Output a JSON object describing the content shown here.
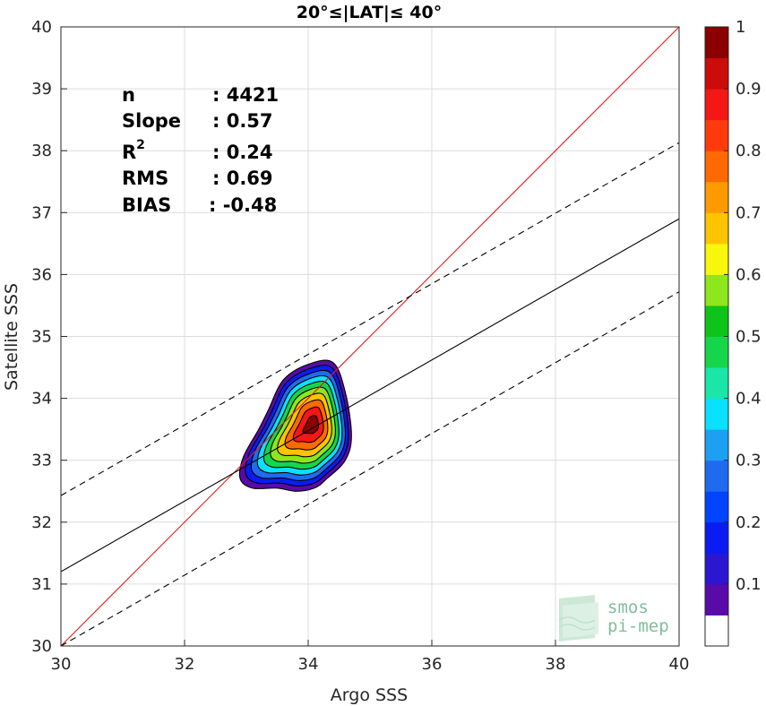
{
  "chart_data": {
    "type": "scatter",
    "title": "20°≤|LAT|≤ 40°",
    "xlabel": "Argo SSS",
    "ylabel": "Satellite SSS",
    "xlim": [
      30,
      40
    ],
    "ylim": [
      30,
      40
    ],
    "xticks": [
      "30",
      "32",
      "34",
      "36",
      "38",
      "40"
    ],
    "yticks": [
      "30",
      "31",
      "32",
      "33",
      "34",
      "35",
      "36",
      "37",
      "38",
      "39",
      "40"
    ],
    "grid": true,
    "stats": [
      {
        "label": "n",
        "value": ": 4421"
      },
      {
        "label": "Slope",
        "value": ": 0.57"
      },
      {
        "label": "R",
        "sup": "2",
        "value": ": 0.24"
      },
      {
        "label": "RMS",
        "value": ": 0.69"
      },
      {
        "label": "BIAS",
        "value": ": -0.48"
      }
    ],
    "lines": [
      {
        "kind": "one-to-one",
        "color": "#e8191b",
        "style": "solid",
        "x": [
          30,
          40
        ],
        "y": [
          30,
          40
        ]
      },
      {
        "kind": "regression",
        "color": "#000000",
        "style": "solid",
        "x": [
          30,
          40
        ],
        "y": [
          31.2,
          36.9
        ]
      },
      {
        "kind": "regression-upper",
        "color": "#000000",
        "style": "dashed",
        "x": [
          30,
          40
        ],
        "y": [
          32.43,
          38.13
        ]
      },
      {
        "kind": "regression-lower",
        "color": "#000000",
        "style": "dashed",
        "x": [
          30,
          40
        ],
        "y": [
          30.0,
          35.72
        ]
      }
    ],
    "density": {
      "center": [
        34.08,
        33.58
      ],
      "peak": 1.0,
      "contour_levels": [
        0.05,
        0.15,
        0.25,
        0.35,
        0.45,
        0.55,
        0.65,
        0.75,
        0.85,
        0.95
      ],
      "outer_contour": [
        [
          33.6,
          34.3
        ],
        [
          34.0,
          34.55
        ],
        [
          34.4,
          34.58
        ],
        [
          34.6,
          34.1
        ],
        [
          34.7,
          33.4
        ],
        [
          34.6,
          33.0
        ],
        [
          34.3,
          32.7
        ],
        [
          34.1,
          32.55
        ],
        [
          33.8,
          32.5
        ],
        [
          33.5,
          32.55
        ],
        [
          33.1,
          32.55
        ],
        [
          32.9,
          32.7
        ],
        [
          32.95,
          33.05
        ],
        [
          33.2,
          33.5
        ],
        [
          33.35,
          33.8
        ]
      ],
      "colormap": [
        "#ffffff",
        "#5a0aa8",
        "#2b17cf",
        "#0a1cf2",
        "#0044ff",
        "#1f6bf0",
        "#1da0f2",
        "#0ae0ff",
        "#1ae6a8",
        "#15d64a",
        "#0ec41a",
        "#8ee61c",
        "#f7f70c",
        "#ffc400",
        "#ff9a00",
        "#ff6a00",
        "#ff3b0e",
        "#f51616",
        "#cc0b0b",
        "#8b0000"
      ]
    },
    "colorbar": {
      "min": 0,
      "max": 1,
      "ticks": [
        "0.1",
        "0.2",
        "0.3",
        "0.4",
        "0.5",
        "0.6",
        "0.7",
        "0.8",
        "0.9",
        "1"
      ],
      "tick_values": [
        0.1,
        0.2,
        0.3,
        0.4,
        0.5,
        0.6,
        0.7,
        0.8,
        0.9,
        1.0
      ]
    },
    "logo": {
      "line1": "smos",
      "line2": "pi-mep"
    }
  }
}
